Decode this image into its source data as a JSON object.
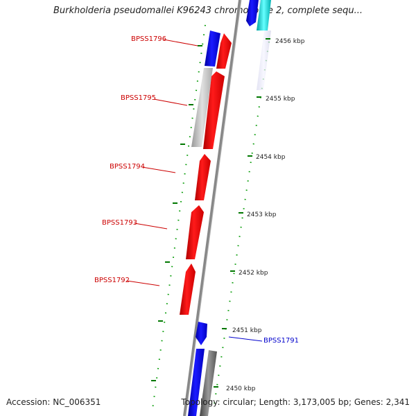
{
  "title": "Burkholderia pseudomallei K96243 chromosome 2, complete sequ...",
  "footer": {
    "accession": "Accession: NC_006351",
    "topology": "Topology: circular; Length: 3,173,005 bp; Genes: 2,341"
  },
  "ticks": [
    "2456 kbp",
    "2455 kbp",
    "2454 kbp",
    "2453 kbp",
    "2452 kbp",
    "2451 kbp",
    "2450 kbp"
  ],
  "genes": [
    {
      "name": "BPSS1796",
      "color": "#cc0000"
    },
    {
      "name": "BPSS1795",
      "color": "#cc0000"
    },
    {
      "name": "BPSS1794",
      "color": "#cc0000"
    },
    {
      "name": "BPSS1793",
      "color": "#cc0000"
    },
    {
      "name": "BPSS1792",
      "color": "#cc0000"
    },
    {
      "name": "BPSS1791",
      "color": "#0000cc"
    }
  ],
  "colors": {
    "forward_red": "#ff0000",
    "forward_blue": "#0000ff",
    "similarity_grey": "#aaaaaa",
    "similarity_dark": "#555555",
    "similarity_cyan": "#00cccc",
    "tick_green": "#007700"
  }
}
